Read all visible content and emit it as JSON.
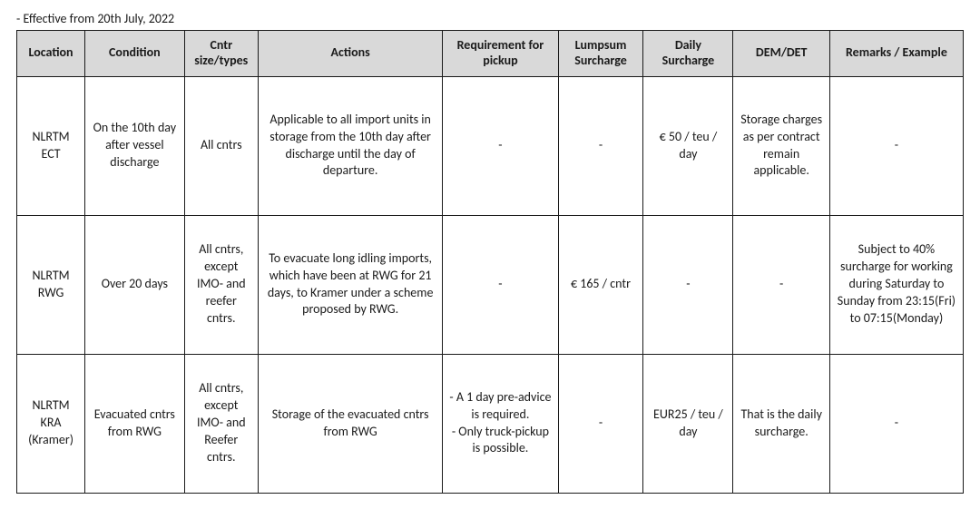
{
  "effective_label": "- Effective from 20th July, 2022",
  "columns": [
    "Location",
    "Condition",
    "Cntr size/types",
    "Actions",
    "Requirement for pickup",
    "Lumpsum Surcharge",
    "Daily Surcharge",
    "DEM/DET",
    "Remarks / Example"
  ],
  "rows": [
    {
      "location": "NLRTM ECT",
      "condition": "On the 10th day after vessel discharge",
      "cntr": "All cntrs",
      "actions": "Applicable to all import units in storage from the 10th day after discharge until the day of departure.",
      "requirement": "-",
      "lumpsum": "-",
      "daily": "€ 50 / teu / day",
      "demdet": "Storage charges as per contract remain applicable.",
      "remarks": "-"
    },
    {
      "location": "NLRTM RWG",
      "condition": "Over 20 days",
      "cntr": "All cntrs, except IMO- and reefer cntrs.",
      "actions": "To evacuate long idling imports, which have been at RWG for 21 days, to Kramer under a scheme proposed by RWG.",
      "requirement": "-",
      "lumpsum": "€ 165 / cntr",
      "daily": "-",
      "demdet": "-",
      "remarks": "Subject to 40% surcharge for working during Saturday to Sunday from 23:15(Fri) to 07:15(Monday)"
    },
    {
      "location": "NLRTM KRA (Kramer)",
      "condition": "Evacuated cntrs from RWG",
      "cntr": "All cntrs, except IMO- and Reefer cntrs.",
      "actions": "Storage of the evacuated cntrs from RWG",
      "requirement": "- A 1 day pre-advice is required.\n- Only truck-pickup is possible.",
      "lumpsum": "-",
      "daily": "EUR25 / teu / day",
      "demdet": "That is the daily surcharge.",
      "remarks": "-"
    }
  ]
}
